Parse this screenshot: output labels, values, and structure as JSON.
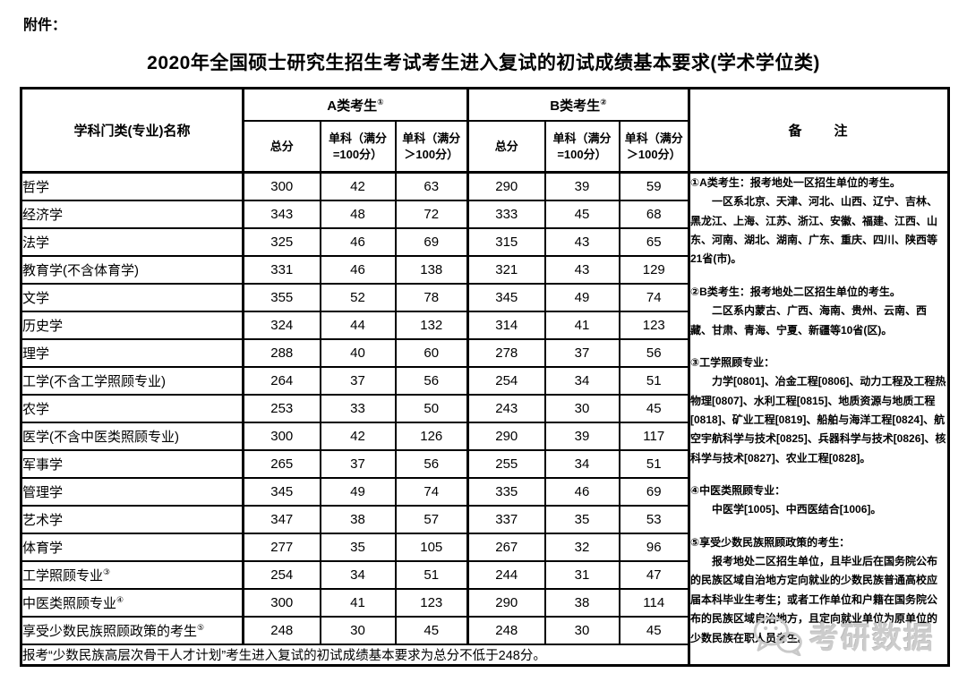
{
  "page": {
    "attachment_label": "附件：",
    "title": "2020年全国硕士研究生招生考试考生进入复试的初试成绩基本要求(学术学位类)"
  },
  "table": {
    "header": {
      "subject_col": "学科门类(专业)名称",
      "group_a": {
        "label": "A类考生",
        "sup": "①"
      },
      "group_b": {
        "label": "B类考生",
        "sup": "②"
      },
      "sub_total": "总分",
      "sub_single_100_l1": "单科（满分",
      "sub_single_100_l2": "=100分）",
      "sub_single_gt100_l1": "单科（满分",
      "sub_single_gt100_l2": "＞100分）",
      "remarks": "备　　注"
    },
    "rows": [
      {
        "name": "哲学",
        "sup": "",
        "a": [
          300,
          42,
          63
        ],
        "b": [
          290,
          39,
          59
        ]
      },
      {
        "name": "经济学",
        "sup": "",
        "a": [
          343,
          48,
          72
        ],
        "b": [
          333,
          45,
          68
        ]
      },
      {
        "name": "法学",
        "sup": "",
        "a": [
          325,
          46,
          69
        ],
        "b": [
          315,
          43,
          65
        ]
      },
      {
        "name": "教育学(不含体育学)",
        "sup": "",
        "a": [
          331,
          46,
          138
        ],
        "b": [
          321,
          43,
          129
        ]
      },
      {
        "name": "文学",
        "sup": "",
        "a": [
          355,
          52,
          78
        ],
        "b": [
          345,
          49,
          74
        ]
      },
      {
        "name": "历史学",
        "sup": "",
        "a": [
          324,
          44,
          132
        ],
        "b": [
          314,
          41,
          123
        ]
      },
      {
        "name": "理学",
        "sup": "",
        "a": [
          288,
          40,
          60
        ],
        "b": [
          278,
          37,
          56
        ]
      },
      {
        "name": "工学(不含工学照顾专业)",
        "sup": "",
        "a": [
          264,
          37,
          56
        ],
        "b": [
          254,
          34,
          51
        ]
      },
      {
        "name": "农学",
        "sup": "",
        "a": [
          253,
          33,
          50
        ],
        "b": [
          243,
          30,
          45
        ]
      },
      {
        "name": "医学(不含中医类照顾专业)",
        "sup": "",
        "a": [
          300,
          42,
          126
        ],
        "b": [
          290,
          39,
          117
        ]
      },
      {
        "name": "军事学",
        "sup": "",
        "a": [
          265,
          37,
          56
        ],
        "b": [
          255,
          34,
          51
        ]
      },
      {
        "name": "管理学",
        "sup": "",
        "a": [
          345,
          49,
          74
        ],
        "b": [
          335,
          46,
          69
        ]
      },
      {
        "name": "艺术学",
        "sup": "",
        "a": [
          347,
          38,
          57
        ],
        "b": [
          337,
          35,
          53
        ]
      },
      {
        "name": "体育学",
        "sup": "",
        "a": [
          277,
          35,
          105
        ],
        "b": [
          267,
          32,
          96
        ]
      },
      {
        "name": "工学照顾专业",
        "sup": "③",
        "a": [
          254,
          34,
          51
        ],
        "b": [
          244,
          31,
          47
        ]
      },
      {
        "name": "中医类照顾专业",
        "sup": "④",
        "a": [
          300,
          41,
          123
        ],
        "b": [
          290,
          38,
          114
        ]
      },
      {
        "name": "享受少数民族照顾政策的考生",
        "sup": "⑤",
        "a": [
          248,
          30,
          45
        ],
        "b": [
          248,
          30,
          45
        ]
      }
    ],
    "footnote": "报考“少数民族高层次骨干人才计划”考生进入复试的初试成绩基本要求为总分不低于248分。"
  },
  "notes": {
    "paragraphs": [
      {
        "text": "①A类考生：报考地处一区招生单位的考生。",
        "indent": false,
        "gap": false
      },
      {
        "text": "一区系北京、天津、河北、山西、辽宁、吉林、黑龙江、上海、江苏、浙江、安徽、福建、江西、山东、河南、湖北、湖南、广东、重庆、四川、陕西等21省(市)。",
        "indent": true,
        "gap": false
      },
      {
        "text": "②B类考生：报考地处二区招生单位的考生。",
        "indent": false,
        "gap": true
      },
      {
        "text": "二区系内蒙古、广西、海南、贵州、云南、西藏、甘肃、青海、宁夏、新疆等10省(区)。",
        "indent": true,
        "gap": false
      },
      {
        "text": "③工学照顾专业：",
        "indent": false,
        "gap": true
      },
      {
        "text": "力学[0801]、冶金工程[0806]、动力工程及工程热物理[0807]、水利工程[0815]、地质资源与地质工程[0818]、矿业工程[0819]、船舶与海洋工程[0824]、航空宇航科学与技术[0825]、兵器科学与技术[0826]、核科学与技术[0827]、农业工程[0828]。",
        "indent": true,
        "gap": false
      },
      {
        "text": "④中医类照顾专业：",
        "indent": false,
        "gap": true
      },
      {
        "text": "中医学[1005]、中西医结合[1006]。",
        "indent": true,
        "gap": false
      },
      {
        "text": "⑤享受少数民族照顾政策的考生：",
        "indent": false,
        "gap": true
      },
      {
        "text": "报考地处二区招生单位，且毕业后在国务院公布的民族区域自治地方定向就业的少数民族普通高校应届本科毕业生考生；或者工作单位和户籍在国务院公布的民族区域自治地方，且定向就业单位为原单位的少数民族在职人员考生。",
        "indent": true,
        "gap": false
      }
    ]
  },
  "watermark": {
    "text": "考研数据",
    "icon": "wechat-icon",
    "color": "#cccccc"
  }
}
